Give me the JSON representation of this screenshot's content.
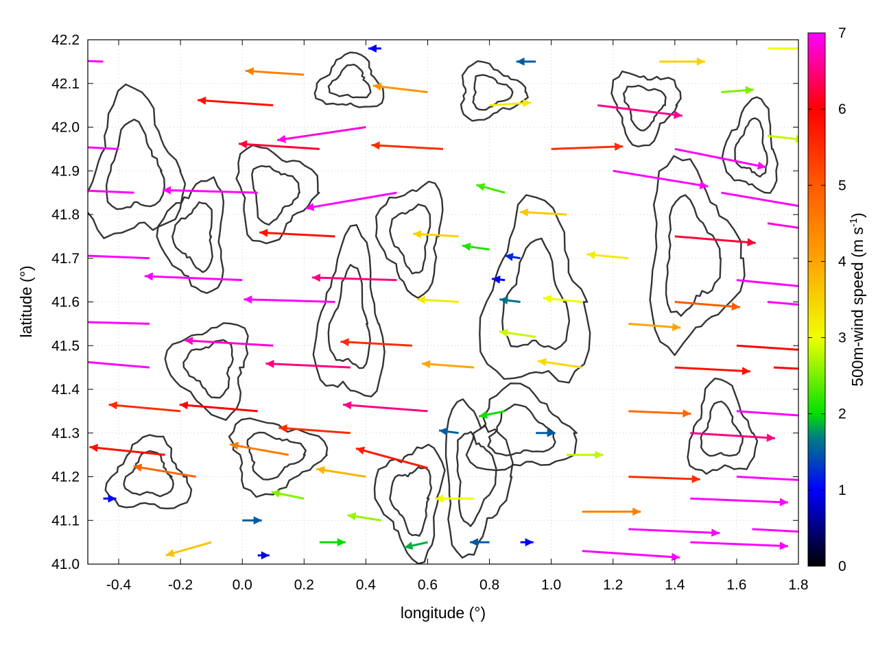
{
  "chart_data": {
    "type": "vector-field",
    "xlabel": "longitude (°)",
    "ylabel": "latitude (°)",
    "xlim": [
      -0.5,
      1.8
    ],
    "ylim": [
      41.0,
      42.2
    ],
    "x_ticks": [
      "-0.4",
      "-0.2",
      "0.0",
      "0.2",
      "0.4",
      "0.6",
      "0.8",
      "1.0",
      "1.2",
      "1.4",
      "1.6",
      "1.8"
    ],
    "x_tick_values": [
      -0.4,
      -0.2,
      0.0,
      0.2,
      0.4,
      0.6,
      0.8,
      1.0,
      1.2,
      1.4,
      1.6,
      1.8
    ],
    "y_ticks": [
      "41.0",
      "41.1",
      "41.2",
      "41.3",
      "41.4",
      "41.5",
      "41.6",
      "41.7",
      "41.8",
      "41.9",
      "42.0",
      "42.1",
      "42.2"
    ],
    "y_tick_values": [
      41.0,
      41.1,
      41.2,
      41.3,
      41.4,
      41.5,
      41.6,
      41.7,
      41.8,
      41.9,
      42.0,
      42.1,
      42.2
    ],
    "grid": true,
    "colorbar": {
      "label_main": "500m-wind speed (m s",
      "label_sup": "-1",
      "label_close": ")",
      "range": [
        0,
        7
      ],
      "ticks": [
        "0",
        "1",
        "2",
        "3",
        "4",
        "5",
        "6",
        "7"
      ],
      "tick_values": [
        0,
        1,
        2,
        3,
        4,
        5,
        6,
        7
      ],
      "stops": [
        {
          "v": 0,
          "color": "#000000"
        },
        {
          "v": 1,
          "color": "#0000ff"
        },
        {
          "v": 1.7,
          "color": "#008080"
        },
        {
          "v": 2,
          "color": "#00e000"
        },
        {
          "v": 3,
          "color": "#f0ff00"
        },
        {
          "v": 4,
          "color": "#ffa500"
        },
        {
          "v": 5,
          "color": "#ff5a00"
        },
        {
          "v": 6,
          "color": "#ff0000"
        },
        {
          "v": 7,
          "color": "#ff00ff"
        }
      ]
    },
    "contour_color": "#333333",
    "wind_vectors": [
      {
        "lon": -0.45,
        "lat": 42.15,
        "u": -7.5,
        "v": 0.3
      },
      {
        "lon": -0.4,
        "lat": 41.95,
        "u": -7.5,
        "v": 0.4
      },
      {
        "lon": -0.35,
        "lat": 41.85,
        "u": -7.2,
        "v": 0.3
      },
      {
        "lon": -0.3,
        "lat": 41.7,
        "u": -7.5,
        "v": 0.3
      },
      {
        "lon": -0.3,
        "lat": 41.55,
        "u": -7.4,
        "v": 0.2
      },
      {
        "lon": -0.3,
        "lat": 41.45,
        "u": -7.0,
        "v": 0.6
      },
      {
        "lon": -0.2,
        "lat": 41.35,
        "u": -5.5,
        "v": 0.5
      },
      {
        "lon": -0.25,
        "lat": 41.25,
        "u": -5.8,
        "v": 0.6
      },
      {
        "lon": -0.15,
        "lat": 41.2,
        "u": -4.8,
        "v": 0.8
      },
      {
        "lon": -0.1,
        "lat": 41.05,
        "u": -3.5,
        "v": -1.0
      },
      {
        "lon": 0.0,
        "lat": 41.1,
        "u": 1.5,
        "v": 0.0
      },
      {
        "lon": 0.05,
        "lat": 41.02,
        "u": 0.9,
        "v": 0.0
      },
      {
        "lon": -0.45,
        "lat": 41.15,
        "u": 1.0,
        "v": 0.0
      },
      {
        "lon": 0.05,
        "lat": 41.85,
        "u": -7.3,
        "v": 0.2
      },
      {
        "lon": 0.0,
        "lat": 41.65,
        "u": -7.5,
        "v": 0.3
      },
      {
        "lon": 0.1,
        "lat": 41.5,
        "u": -6.8,
        "v": 0.4
      },
      {
        "lon": 0.05,
        "lat": 41.35,
        "u": -6.0,
        "v": 0.5
      },
      {
        "lon": 0.15,
        "lat": 41.25,
        "u": -4.5,
        "v": 0.8
      },
      {
        "lon": 0.2,
        "lat": 41.15,
        "u": -2.5,
        "v": 0.5
      },
      {
        "lon": 0.25,
        "lat": 41.05,
        "u": 2.0,
        "v": 0.0
      },
      {
        "lon": 0.1,
        "lat": 42.05,
        "u": -5.8,
        "v": 0.4
      },
      {
        "lon": 0.2,
        "lat": 42.12,
        "u": -4.5,
        "v": 0.3
      },
      {
        "lon": 0.25,
        "lat": 41.95,
        "u": -6.2,
        "v": 0.4
      },
      {
        "lon": 0.3,
        "lat": 41.75,
        "u": -5.8,
        "v": 0.3
      },
      {
        "lon": 0.3,
        "lat": 41.6,
        "u": -7.0,
        "v": 0.2
      },
      {
        "lon": 0.35,
        "lat": 41.45,
        "u": -6.5,
        "v": 0.3
      },
      {
        "lon": 0.35,
        "lat": 41.3,
        "u": -5.5,
        "v": 0.4
      },
      {
        "lon": 0.4,
        "lat": 41.2,
        "u": -3.8,
        "v": 0.6
      },
      {
        "lon": 0.45,
        "lat": 41.1,
        "u": -2.6,
        "v": 0.4
      },
      {
        "lon": 0.4,
        "lat": 42.0,
        "u": -6.8,
        "v": -1.0
      },
      {
        "lon": 0.45,
        "lat": 42.18,
        "u": -1.0,
        "v": 0.0
      },
      {
        "lon": 0.5,
        "lat": 41.85,
        "u": -7.0,
        "v": -1.2
      },
      {
        "lon": 0.5,
        "lat": 41.65,
        "u": -6.5,
        "v": 0.2
      },
      {
        "lon": 0.55,
        "lat": 41.5,
        "u": -5.5,
        "v": 0.3
      },
      {
        "lon": 0.6,
        "lat": 41.35,
        "u": -6.5,
        "v": 0.5
      },
      {
        "lon": 0.6,
        "lat": 41.22,
        "u": -5.5,
        "v": 1.5
      },
      {
        "lon": 0.6,
        "lat": 41.05,
        "u": -1.8,
        "v": -0.4
      },
      {
        "lon": 0.6,
        "lat": 42.08,
        "u": -4.2,
        "v": 0.5
      },
      {
        "lon": 0.65,
        "lat": 41.95,
        "u": -5.5,
        "v": 0.3
      },
      {
        "lon": 0.7,
        "lat": 41.75,
        "u": -3.5,
        "v": 0.2
      },
      {
        "lon": 0.7,
        "lat": 41.6,
        "u": -3.2,
        "v": 0.2
      },
      {
        "lon": 0.75,
        "lat": 41.45,
        "u": -4.0,
        "v": 0.3
      },
      {
        "lon": 0.7,
        "lat": 41.3,
        "u": -1.5,
        "v": 0.2
      },
      {
        "lon": 0.75,
        "lat": 41.15,
        "u": -3.0,
        "v": 0.0
      },
      {
        "lon": 0.8,
        "lat": 41.05,
        "u": -1.5,
        "v": 0.0
      },
      {
        "lon": 0.8,
        "lat": 41.72,
        "u": -2.1,
        "v": 0.3
      },
      {
        "lon": 0.85,
        "lat": 41.65,
        "u": -1.0,
        "v": 0.1
      },
      {
        "lon": 0.9,
        "lat": 41.7,
        "u": -1.2,
        "v": 0.2
      },
      {
        "lon": 0.9,
        "lat": 41.6,
        "u": -1.6,
        "v": 0.2
      },
      {
        "lon": 0.95,
        "lat": 41.52,
        "u": -2.8,
        "v": 0.4
      },
      {
        "lon": 0.85,
        "lat": 41.35,
        "u": -2.0,
        "v": -0.4
      },
      {
        "lon": 0.95,
        "lat": 41.3,
        "u": 1.5,
        "v": 0.0
      },
      {
        "lon": 0.9,
        "lat": 41.05,
        "u": 1.0,
        "v": 0.0
      },
      {
        "lon": 0.85,
        "lat": 41.85,
        "u": -2.2,
        "v": 0.6
      },
      {
        "lon": 0.8,
        "lat": 42.05,
        "u": 3.2,
        "v": 0.2
      },
      {
        "lon": 0.95,
        "lat": 42.15,
        "u": -1.5,
        "v": 0.0
      },
      {
        "lon": 1.0,
        "lat": 41.95,
        "u": 5.5,
        "v": 0.2
      },
      {
        "lon": 1.05,
        "lat": 41.8,
        "u": -3.6,
        "v": 0.2
      },
      {
        "lon": 1.1,
        "lat": 41.6,
        "u": -3.0,
        "v": 0.3
      },
      {
        "lon": 1.1,
        "lat": 41.45,
        "u": -3.4,
        "v": 0.5
      },
      {
        "lon": 1.05,
        "lat": 41.25,
        "u": 2.8,
        "v": 0.0
      },
      {
        "lon": 1.1,
        "lat": 41.12,
        "u": 4.5,
        "v": 0.0
      },
      {
        "lon": 1.1,
        "lat": 41.03,
        "u": 7.5,
        "v": -0.5
      },
      {
        "lon": 1.15,
        "lat": 42.05,
        "u": 6.5,
        "v": -0.8
      },
      {
        "lon": 1.2,
        "lat": 41.9,
        "u": 7.3,
        "v": -1.2
      },
      {
        "lon": 1.25,
        "lat": 41.7,
        "u": -3.2,
        "v": 0.3
      },
      {
        "lon": 1.25,
        "lat": 41.55,
        "u": 4.0,
        "v": -0.3
      },
      {
        "lon": 1.25,
        "lat": 41.35,
        "u": 4.8,
        "v": -0.2
      },
      {
        "lon": 1.25,
        "lat": 41.2,
        "u": 5.5,
        "v": -0.2
      },
      {
        "lon": 1.25,
        "lat": 41.08,
        "u": 7.0,
        "v": -0.3
      },
      {
        "lon": 1.35,
        "lat": 42.15,
        "u": 3.5,
        "v": 0.0
      },
      {
        "lon": 1.4,
        "lat": 41.95,
        "u": 7.0,
        "v": -1.4
      },
      {
        "lon": 1.4,
        "lat": 41.75,
        "u": 6.2,
        "v": -0.5
      },
      {
        "lon": 1.4,
        "lat": 41.6,
        "u": 5.0,
        "v": -0.4
      },
      {
        "lon": 1.4,
        "lat": 41.45,
        "u": 5.8,
        "v": -0.3
      },
      {
        "lon": 1.45,
        "lat": 41.3,
        "u": 6.5,
        "v": -0.4
      },
      {
        "lon": 1.45,
        "lat": 41.15,
        "u": 7.5,
        "v": -0.3
      },
      {
        "lon": 1.45,
        "lat": 41.05,
        "u": 7.5,
        "v": -0.3
      },
      {
        "lon": 1.55,
        "lat": 42.08,
        "u": 2.5,
        "v": 0.2
      },
      {
        "lon": 1.55,
        "lat": 41.85,
        "u": 7.0,
        "v": -1.2
      },
      {
        "lon": 1.6,
        "lat": 41.65,
        "u": 7.2,
        "v": -0.7
      },
      {
        "lon": 1.6,
        "lat": 41.5,
        "u": 6.0,
        "v": -0.4
      },
      {
        "lon": 1.6,
        "lat": 41.35,
        "u": 7.3,
        "v": -0.5
      },
      {
        "lon": 1.6,
        "lat": 41.2,
        "u": 7.5,
        "v": -0.4
      },
      {
        "lon": 1.65,
        "lat": 41.08,
        "u": 7.5,
        "v": -0.4
      },
      {
        "lon": 1.7,
        "lat": 42.18,
        "u": 3.0,
        "v": 0.0
      },
      {
        "lon": 1.7,
        "lat": 41.98,
        "u": 2.8,
        "v": -0.3
      },
      {
        "lon": 1.7,
        "lat": 41.78,
        "u": 6.8,
        "v": -1.0
      },
      {
        "lon": 1.7,
        "lat": 41.6,
        "u": 7.0,
        "v": -0.6
      },
      {
        "lon": 1.72,
        "lat": 41.45,
        "u": 6.0,
        "v": -0.3
      }
    ]
  }
}
